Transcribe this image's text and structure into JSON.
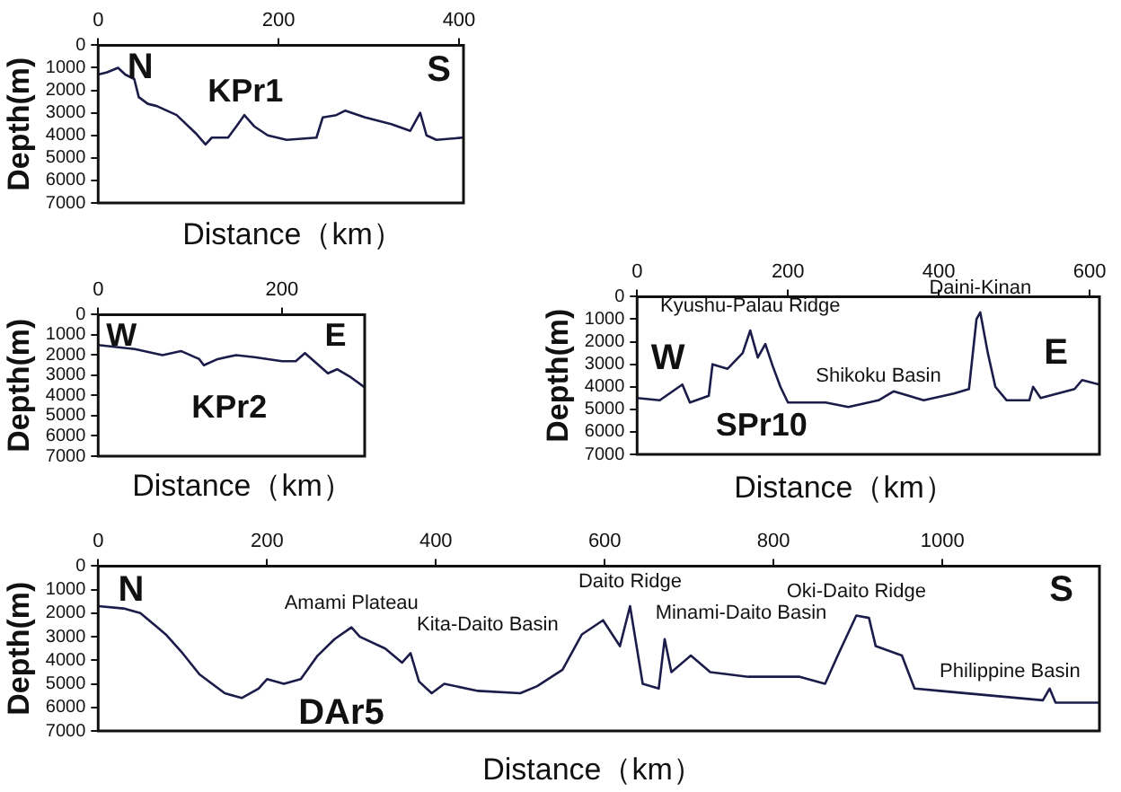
{
  "chart_data": [
    {
      "type": "line",
      "xlabel": "Distance（km）",
      "ylabel": "Depth(m)",
      "annotations": [
        "N",
        "S",
        "KPr1"
      ],
      "xlim": [
        0,
        405
      ],
      "xticks": [
        0,
        200,
        400
      ],
      "ylim": [
        7000,
        0
      ],
      "yticks": [
        0,
        1000,
        2000,
        3000,
        4000,
        5000,
        6000,
        7000
      ],
      "grid": false,
      "legend": false,
      "series": [
        {
          "color": "#1c1c4a",
          "x": [
            0,
            10,
            22,
            30,
            40,
            45,
            55,
            65,
            87,
            108,
            119,
            126,
            144,
            155,
            162,
            173,
            188,
            209,
            242,
            249,
            264,
            274,
            296,
            325,
            346,
            357,
            364,
            375,
            404
          ],
          "values": [
            1300,
            1200,
            1000,
            1300,
            1500,
            2300,
            2600,
            2700,
            3100,
            3900,
            4400,
            4100,
            4100,
            3500,
            3100,
            3600,
            4000,
            4200,
            4100,
            3200,
            3100,
            2900,
            3200,
            3500,
            3800,
            3000,
            4000,
            4200,
            4100
          ]
        }
      ]
    },
    {
      "type": "line",
      "xlabel": "Distance（km）",
      "ylabel": "Depth(m)",
      "annotations": [
        "W",
        "E",
        "KPr2"
      ],
      "xlim": [
        0,
        290
      ],
      "xticks": [
        0,
        200
      ],
      "ylim": [
        7000,
        0
      ],
      "yticks": [
        0,
        1000,
        2000,
        3000,
        4000,
        5000,
        6000,
        7000
      ],
      "grid": false,
      "legend": false,
      "series": [
        {
          "color": "#1c1c4a",
          "x": [
            0,
            20,
            40,
            60,
            70,
            90,
            110,
            115,
            130,
            150,
            170,
            200,
            215,
            225,
            240,
            250,
            260,
            275,
            290
          ],
          "values": [
            1500,
            1600,
            1700,
            1900,
            2000,
            1800,
            2200,
            2500,
            2200,
            2000,
            2100,
            2300,
            2300,
            1900,
            2500,
            2900,
            2700,
            3100,
            3600
          ]
        }
      ]
    },
    {
      "type": "line",
      "xlabel": "Distance（km）",
      "ylabel": "Depth(m)",
      "annotations": [
        "W",
        "E",
        "SPr10",
        {
          "text": "Kyushu-Palau Ridge",
          "x": 150,
          "y": 1500
        },
        {
          "text": "Shikoku Basin",
          "x": 320,
          "y": 4600
        },
        {
          "text": "Daini-Kinan",
          "x": 455,
          "y": 700
        }
      ],
      "xlim": [
        0,
        613
      ],
      "xticks": [
        0,
        200,
        400,
        600
      ],
      "ylim": [
        7000,
        0
      ],
      "yticks": [
        0,
        1000,
        2000,
        3000,
        4000,
        5000,
        6000,
        7000
      ],
      "grid": false,
      "legend": false,
      "series": [
        {
          "color": "#1c1c4a",
          "x": [
            0,
            30,
            60,
            70,
            95,
            100,
            120,
            140,
            150,
            160,
            170,
            180,
            190,
            200,
            250,
            280,
            320,
            340,
            380,
            420,
            440,
            450,
            455,
            465,
            475,
            490,
            520,
            525,
            535,
            580,
            590,
            613
          ],
          "values": [
            4500,
            4600,
            3900,
            4700,
            4400,
            3000,
            3200,
            2500,
            1500,
            2700,
            2100,
            3100,
            4000,
            4700,
            4700,
            4900,
            4600,
            4200,
            4600,
            4300,
            4100,
            1000,
            700,
            2500,
            4000,
            4600,
            4600,
            4000,
            4500,
            4100,
            3700,
            3900
          ]
        }
      ]
    },
    {
      "type": "line",
      "xlabel": "Distance（km）",
      "ylabel": "Depth(m)",
      "annotations": [
        "N",
        "S",
        "DAr5",
        {
          "text": "Amami Plateau",
          "x": 300,
          "y": 2600
        },
        {
          "text": "Kita-Daito Basin",
          "x": 440,
          "y": 5200
        },
        {
          "text": "Daito Ridge",
          "x": 630,
          "y": 1700
        },
        {
          "text": "Minami-Daito Basin",
          "x": 770,
          "y": 4700
        },
        {
          "text": "Oki-Daito Ridge",
          "x": 898,
          "y": 2100
        },
        {
          "text": "Philippine Basin",
          "x": 1080,
          "y": 5500
        }
      ],
      "xlim": [
        0,
        1186
      ],
      "xticks": [
        0,
        200,
        400,
        600,
        800,
        1000
      ],
      "ylim": [
        7000,
        0
      ],
      "yticks": [
        0,
        1000,
        2000,
        3000,
        4000,
        5000,
        6000,
        7000
      ],
      "grid": false,
      "legend": false,
      "series": [
        {
          "color": "#1c1c4a",
          "x": [
            0,
            30,
            50,
            70,
            80,
            100,
            120,
            150,
            170,
            190,
            200,
            220,
            240,
            260,
            280,
            300,
            310,
            340,
            360,
            370,
            380,
            395,
            410,
            450,
            500,
            520,
            550,
            573,
            598,
            618,
            630,
            645,
            664,
            671,
            679,
            702,
            725,
            770,
            831,
            861,
            876,
            898,
            913,
            921,
            952,
            967,
            997,
            1058,
            1119,
            1127,
            1134,
            1186
          ],
          "values": [
            1700,
            1800,
            2000,
            2600,
            2900,
            3700,
            4600,
            5400,
            5600,
            5200,
            4800,
            5000,
            4800,
            3800,
            3100,
            2600,
            3000,
            3500,
            4100,
            3700,
            4900,
            5400,
            5000,
            5300,
            5400,
            5100,
            4400,
            2900,
            2300,
            3400,
            1700,
            5000,
            5200,
            3100,
            4500,
            3800,
            4500,
            4700,
            4700,
            5000,
            3800,
            2100,
            2200,
            3400,
            3800,
            5200,
            5300,
            5500,
            5700,
            5200,
            5800,
            5800
          ]
        }
      ]
    }
  ]
}
